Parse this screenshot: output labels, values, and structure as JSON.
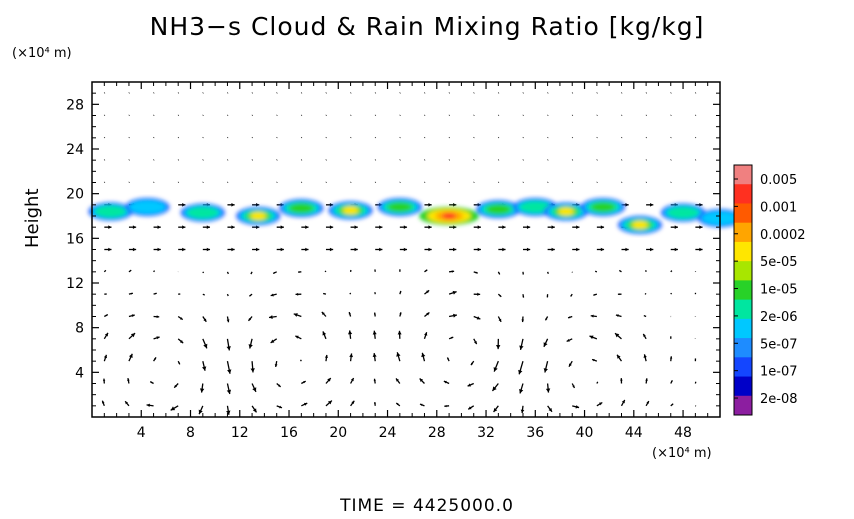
{
  "title": "NH3−s Cloud & Rain Mixing Ratio [kg/kg]",
  "y_unit": "(×10⁴ m)",
  "x_unit": "(×10⁴ m)",
  "time_label": "TIME  =  4425000.0",
  "chart_data": {
    "type": "heatmap",
    "ylabel": "Height",
    "xlim": [
      0,
      51
    ],
    "ylim": [
      0,
      30
    ],
    "xticks": [
      4,
      8,
      12,
      16,
      20,
      24,
      28,
      32,
      36,
      40,
      44,
      48
    ],
    "yticks": [
      4,
      8,
      12,
      16,
      20,
      24,
      28
    ],
    "colorbar": {
      "labels": [
        "0.005",
        "0.001",
        "0.0002",
        "5e-05",
        "1e-05",
        "2e-06",
        "5e-07",
        "1e-07",
        "2e-08"
      ],
      "colors": [
        "#f08080",
        "#ff3020",
        "#ff5a00",
        "#ffa500",
        "#ffe600",
        "#a8e600",
        "#28d228",
        "#00e6a0",
        "#00c8ff",
        "#1e8cff",
        "#1446ff",
        "#0000c8",
        "#8c1ea0"
      ]
    },
    "cloud_band": {
      "y_range": [
        16.5,
        20
      ],
      "peak_x": 29,
      "peak_y": 18,
      "peak_level": "0.0002",
      "blobs": [
        {
          "x": 1.5,
          "y": 18.4,
          "level": "2e-06"
        },
        {
          "x": 4.5,
          "y": 18.8,
          "level": "5e-07"
        },
        {
          "x": 9,
          "y": 18.3,
          "level": "2e-06"
        },
        {
          "x": 13.5,
          "y": 18.0,
          "level": "5e-05"
        },
        {
          "x": 17,
          "y": 18.7,
          "level": "1e-05"
        },
        {
          "x": 21,
          "y": 18.5,
          "level": "5e-05"
        },
        {
          "x": 25,
          "y": 18.8,
          "level": "1e-05"
        },
        {
          "x": 29,
          "y": 18.0,
          "level": "0.0002"
        },
        {
          "x": 33,
          "y": 18.6,
          "level": "1e-05"
        },
        {
          "x": 36,
          "y": 18.8,
          "level": "2e-06"
        },
        {
          "x": 38.5,
          "y": 18.4,
          "level": "5e-05"
        },
        {
          "x": 41.5,
          "y": 18.8,
          "level": "1e-05"
        },
        {
          "x": 44.5,
          "y": 17.2,
          "level": "5e-05"
        },
        {
          "x": 48,
          "y": 18.3,
          "level": "2e-06"
        },
        {
          "x": 51,
          "y": 17.8,
          "level": "5e-07"
        }
      ]
    },
    "wind_vectors": "quiver field over the whole domain; strong circulations near x=16, x=30 and x=40 below 10, eastward flow near 15–20 height"
  }
}
